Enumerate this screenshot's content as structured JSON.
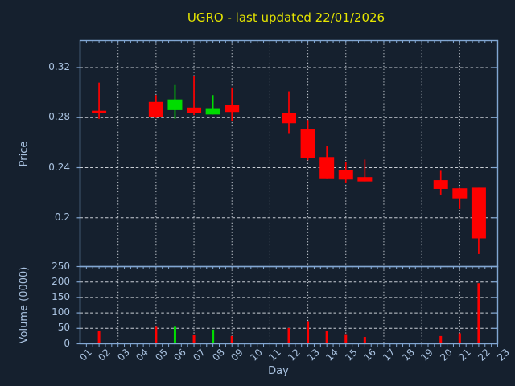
{
  "colors": {
    "figure_bg": "#15202e",
    "axes_bg": "#15202e",
    "spine": "#82a7d3",
    "tick_label": "#a9c2e0",
    "title": "#e5e500",
    "grid": "#c9ced5",
    "up": "#00dd00",
    "down": "#ff0000"
  },
  "chart_data": {
    "type": "candlestick",
    "title": "UGRO - last updated 22/01/2026",
    "xlabel": "Day",
    "x_axis": {
      "xlim": [
        1,
        23
      ],
      "tick_labels": [
        "01",
        "02",
        "03",
        "04",
        "05",
        "06",
        "07",
        "08",
        "09",
        "10",
        "11",
        "12",
        "13",
        "14",
        "15",
        "16",
        "17",
        "18",
        "19",
        "20",
        "21",
        "22",
        "23"
      ],
      "gridline_days": [
        3,
        5,
        7,
        9,
        11,
        13,
        15,
        17,
        19,
        21,
        23
      ]
    },
    "price_panel": {
      "ylabel": "Price",
      "ylim": [
        0.161,
        0.3415
      ],
      "yticks": [
        0.2,
        0.24,
        0.28,
        0.32
      ],
      "ytick_labels": [
        "0.2",
        "0.24",
        "0.28",
        "0.32"
      ],
      "grid": true,
      "candles": [
        {
          "day": 2,
          "open": 0.2855,
          "high": 0.308,
          "low": 0.279,
          "close": 0.284
        },
        {
          "day": 5,
          "open": 0.2925,
          "high": 0.298,
          "low": 0.2797,
          "close": 0.2805
        },
        {
          "day": 6,
          "open": 0.286,
          "high": 0.306,
          "low": 0.279,
          "close": 0.2945
        },
        {
          "day": 7,
          "open": 0.288,
          "high": 0.3135,
          "low": 0.282,
          "close": 0.2835
        },
        {
          "day": 8,
          "open": 0.2825,
          "high": 0.298,
          "low": 0.2825,
          "close": 0.2875
        },
        {
          "day": 9,
          "open": 0.29,
          "high": 0.304,
          "low": 0.2775,
          "close": 0.2845
        },
        {
          "day": 12,
          "open": 0.284,
          "high": 0.301,
          "low": 0.267,
          "close": 0.2755
        },
        {
          "day": 13,
          "open": 0.2705,
          "high": 0.278,
          "low": 0.246,
          "close": 0.248
        },
        {
          "day": 14,
          "open": 0.2485,
          "high": 0.257,
          "low": 0.2315,
          "close": 0.2315
        },
        {
          "day": 15,
          "open": 0.238,
          "high": 0.2445,
          "low": 0.2275,
          "close": 0.2305
        },
        {
          "day": 16,
          "open": 0.2325,
          "high": 0.2465,
          "low": 0.229,
          "close": 0.229
        },
        {
          "day": 20,
          "open": 0.23,
          "high": 0.2375,
          "low": 0.2185,
          "close": 0.223
        },
        {
          "day": 21,
          "open": 0.2235,
          "high": 0.2235,
          "low": 0.207,
          "close": 0.2155
        },
        {
          "day": 22,
          "open": 0.224,
          "high": 0.224,
          "low": 0.171,
          "close": 0.1835
        }
      ]
    },
    "volume_panel": {
      "ylabel": "Volume (0000)",
      "ylim": [
        0,
        250
      ],
      "yticks": [
        0,
        50,
        100,
        150,
        200,
        250
      ],
      "ytick_labels": [
        "0",
        "50",
        "100",
        "150",
        "200",
        "250"
      ],
      "grid": true,
      "bars": [
        {
          "day": 2,
          "volume": 42
        },
        {
          "day": 5,
          "volume": 55
        },
        {
          "day": 6,
          "volume": 55
        },
        {
          "day": 7,
          "volume": 29
        },
        {
          "day": 8,
          "volume": 46
        },
        {
          "day": 9,
          "volume": 25
        },
        {
          "day": 12,
          "volume": 51
        },
        {
          "day": 13,
          "volume": 73
        },
        {
          "day": 14,
          "volume": 42
        },
        {
          "day": 15,
          "volume": 31
        },
        {
          "day": 16,
          "volume": 22
        },
        {
          "day": 20,
          "volume": 25
        },
        {
          "day": 21,
          "volume": 34
        },
        {
          "day": 22,
          "volume": 196
        }
      ]
    }
  }
}
